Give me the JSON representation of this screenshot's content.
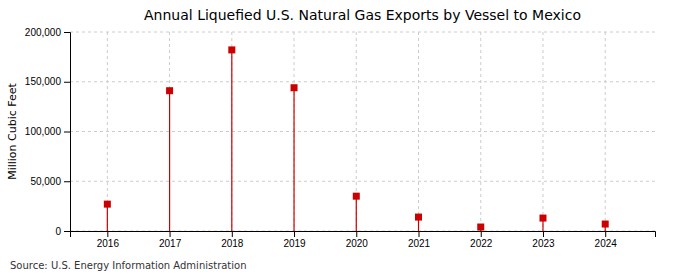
{
  "chart_data": {
    "type": "stem",
    "title": "Annual Liquefied U.S. Natural Gas Exports by Vessel to Mexico",
    "y_label": "Million Cubic Feet",
    "source": "Source: U.S. Energy Information Administration",
    "x": [
      2016,
      2017,
      2018,
      2019,
      2020,
      2021,
      2022,
      2023,
      2024
    ],
    "values": [
      27000,
      141000,
      182000,
      144000,
      35000,
      14000,
      4000,
      13000,
      7000
    ],
    "color": "#cc0000",
    "marker": "square",
    "xlim": [
      2015.4,
      2024.8
    ],
    "xticks": [
      2016,
      2017,
      2018,
      2019,
      2020,
      2021,
      2022,
      2023,
      2024
    ],
    "ylim": [
      0,
      200000
    ],
    "yticks": [
      0,
      {
        "value": 50000,
        "label": "50,000"
      },
      {
        "value": 100000,
        "label": "100,000"
      },
      {
        "value": 150000,
        "label": "150,000"
      },
      {
        "value": 200000,
        "label": "200,000"
      }
    ],
    "grid": true
  }
}
